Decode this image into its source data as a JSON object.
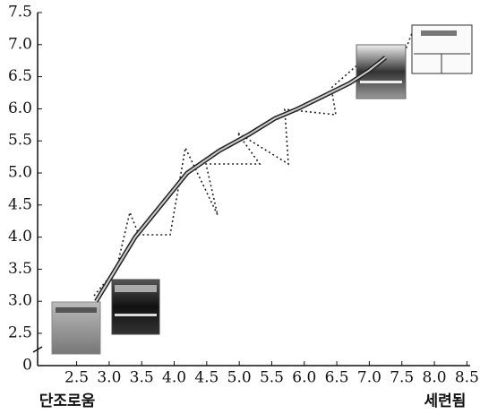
{
  "chart_data": {
    "type": "line",
    "x_low_label": "단조로움",
    "x_high_label": "세련됨",
    "x": [
      2.8,
      3.1,
      3.4,
      3.8,
      4.2,
      4.7,
      5.15,
      5.55,
      5.9,
      6.3,
      6.7,
      7.0,
      7.25
    ],
    "values": [
      3.0,
      3.5,
      4.0,
      4.5,
      5.0,
      5.35,
      5.6,
      5.85,
      6.0,
      6.2,
      6.4,
      6.6,
      6.8
    ],
    "color": "#222",
    "xlim": [
      1.9,
      8.55
    ],
    "xticks": [
      {
        "value": 2.5,
        "label": "2.5"
      },
      {
        "value": 3,
        "label": "3.0"
      },
      {
        "value": 3.5,
        "label": "3.5"
      },
      {
        "value": 4,
        "label": "4.0"
      },
      {
        "value": 4.5,
        "label": "4.5"
      },
      {
        "value": 5,
        "label": "5.0"
      },
      {
        "value": 5.5,
        "label": "5.5"
      },
      {
        "value": 6,
        "label": "6.0"
      },
      {
        "value": 6.5,
        "label": "6.5"
      },
      {
        "value": 7,
        "label": "7.0"
      },
      {
        "value": 7.5,
        "label": "7.5"
      },
      {
        "value": 8,
        "label": "8.0"
      },
      {
        "value": 8.5,
        "label": "8.5"
      }
    ],
    "ylim": [
      0,
      7.5
    ],
    "yticks": [
      0,
      2.5,
      {
        "value": 3,
        "label": "3.0"
      },
      3.5,
      {
        "value": 4,
        "label": "4.0"
      },
      4.5,
      {
        "value": 5,
        "label": "5.0"
      },
      5.5,
      {
        "value": 6,
        "label": "6.0"
      },
      6.5,
      {
        "value": 7,
        "label": "7.0"
      },
      7.5
    ],
    "axis_break": true
  }
}
